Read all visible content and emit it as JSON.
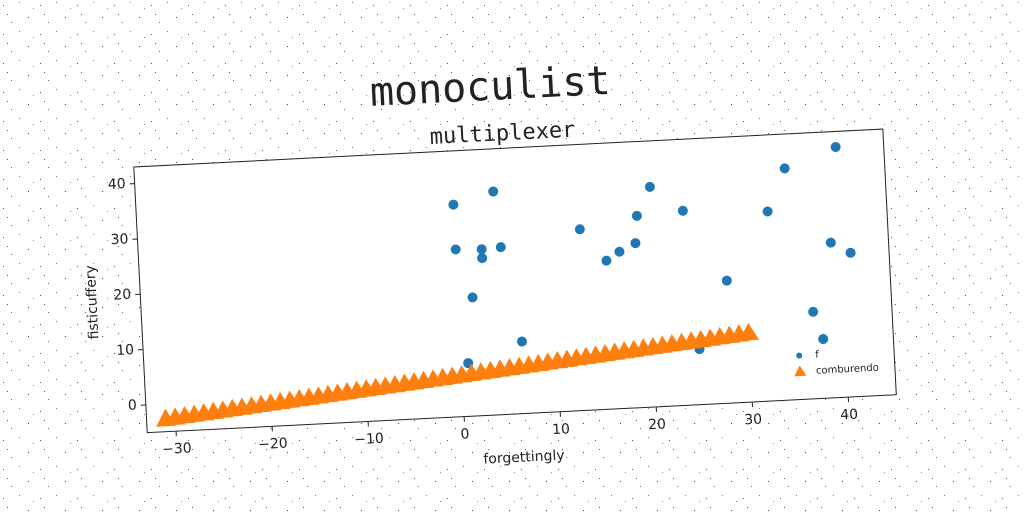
{
  "chart_data": {
    "type": "scatter",
    "title": "monoculist",
    "subtitle": "multiplexer",
    "x_label": "forgettingly",
    "y_label": "fisticuffery",
    "xlim": [
      -33,
      45
    ],
    "ylim": [
      -5,
      43
    ],
    "xticks": [
      {
        "value": -30,
        "label": "−30"
      },
      {
        "value": -20,
        "label": "−20"
      },
      {
        "value": -10,
        "label": "−10"
      },
      0,
      10,
      20,
      30,
      40
    ],
    "yticks": [
      0,
      10,
      20,
      30,
      40
    ],
    "legend": "lower right",
    "series": [
      {
        "name": "f",
        "color": "#1f77b4",
        "marker": "circle",
        "x": [
          0,
          0,
          0.7,
          1.5,
          2.7,
          2.7,
          4.2,
          4.7,
          6.4,
          13,
          15.6,
          17,
          18.7,
          19,
          20.5,
          23.8,
          24.8,
          28,
          32.6,
          34.6,
          36.8,
          37.7,
          39,
          40,
          41
        ],
        "values": [
          33.3,
          25.2,
          4.6,
          16.4,
          25,
          23.4,
          35.3,
          25.2,
          8,
          27.7,
          21.8,
          23.3,
          24.7,
          29.6,
          34.7,
          30.1,
          5,
          17.1,
          29.2,
          36.8,
          10.7,
          5.7,
          23,
          40.2,
          21
        ]
      },
      {
        "name": "comburendo",
        "color": "#ff7f0e",
        "marker": "triangle",
        "x": [
          -31,
          -30,
          -29,
          -28,
          -27,
          -26,
          -25,
          -24,
          -23,
          -22,
          -21,
          -20,
          -19,
          -18,
          -17,
          -16,
          -15,
          -14,
          -13,
          -12,
          -11,
          -10,
          -9,
          -8,
          -7,
          -6,
          -5,
          -4,
          -3,
          -2,
          -1,
          0,
          1,
          2,
          3,
          4,
          5,
          6,
          7,
          8,
          9,
          10,
          11,
          12,
          13,
          14,
          15,
          16,
          17,
          18,
          19,
          20,
          21,
          22,
          23,
          24,
          25,
          26,
          27,
          28,
          29,
          30
        ],
        "values": [
          -2.67,
          -2.5,
          -2.33,
          -2.17,
          -2,
          -1.83,
          -1.67,
          -1.5,
          -1.33,
          -1.17,
          -1,
          -0.83,
          -0.67,
          -0.5,
          -0.33,
          -0.17,
          0,
          0.17,
          0.33,
          0.5,
          0.67,
          0.83,
          1,
          1.17,
          1.33,
          1.5,
          1.67,
          1.83,
          2,
          2.17,
          2.33,
          2.5,
          2.67,
          2.83,
          3,
          3.17,
          3.33,
          3.5,
          3.67,
          3.83,
          4,
          4.17,
          4.33,
          4.5,
          4.67,
          4.83,
          5,
          5.17,
          5.33,
          5.5,
          5.67,
          5.83,
          6,
          6.17,
          6.33,
          6.5,
          6.67,
          6.83,
          7,
          7.17,
          7.33,
          7.5
        ]
      }
    ]
  }
}
